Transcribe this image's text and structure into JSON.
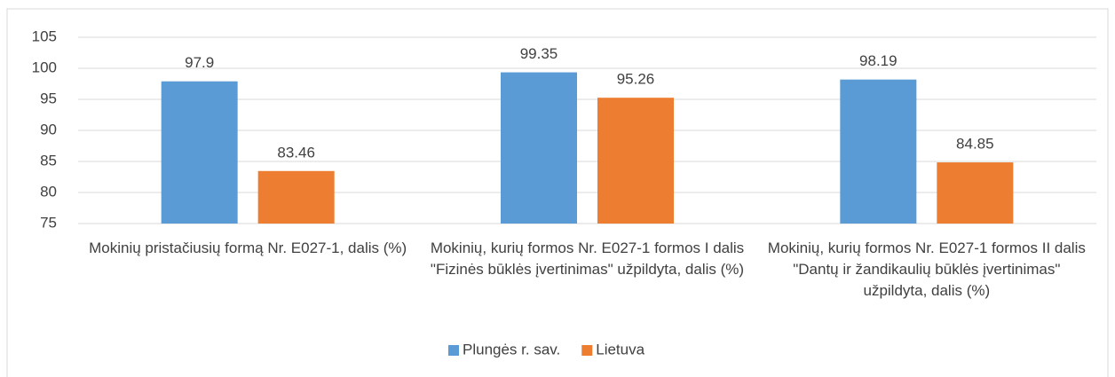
{
  "chart_data": {
    "type": "bar",
    "categories": [
      "Mokinių pristačiusių formą Nr. E027-1, dalis (%)",
      "Mokinių, kurių formos Nr. E027-1 formos I dalis \"Fizinės būklės įvertinimas\" užpildyta, dalis (%)",
      "Mokinių, kurių formos Nr. E027-1 formos II dalis \"Dantų ir žandikaulių būklės įvertinimas\" užpildyta, dalis (%)"
    ],
    "series": [
      {
        "name": "Plungės r. sav.",
        "color": "#5b9bd5",
        "values": [
          97.9,
          99.35,
          98.19
        ]
      },
      {
        "name": "Lietuva",
        "color": "#ed7d31",
        "values": [
          83.46,
          95.26,
          84.85
        ]
      }
    ],
    "ylim": [
      75,
      105
    ],
    "yticks": [
      75,
      80,
      85,
      90,
      95,
      100,
      105
    ],
    "grid": true,
    "legend": "bottom"
  }
}
